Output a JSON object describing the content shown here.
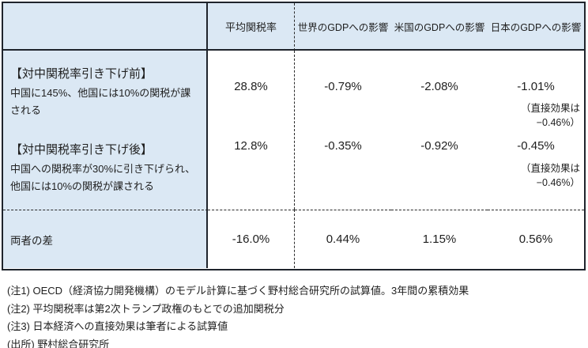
{
  "chart_data": {
    "type": "table",
    "columns": [
      "",
      "平均関税率",
      "世界のGDPへの影響",
      "米国のGDPへの影響",
      "日本のGDPへの影響"
    ],
    "rows": [
      {
        "label_heading": "【対中関税率引き下げ前】",
        "label_desc": [
          "中国に145%、他国には10%の関税が課される"
        ],
        "values": [
          "28.8%",
          "-0.79%",
          "-2.08%",
          "-1.01%"
        ],
        "japan_note": "（直接効果は−0.46%）"
      },
      {
        "label_heading": "【対中関税率引き下げ後】",
        "label_desc": [
          "中国への関税率が30%に引き下げられ、",
          "他国には10%の関税が課される"
        ],
        "values": [
          "12.8%",
          "-0.35%",
          "-0.92%",
          "-0.45%"
        ],
        "japan_note": "（直接効果は−0.46%）"
      },
      {
        "label": "両者の差",
        "values": [
          "-16.0%",
          "0.44%",
          "1.15%",
          "0.56%"
        ]
      }
    ]
  },
  "footnotes": [
    "(注1) OECD（経済協力開発機構）のモデル計算に基づく野村総合研究所の試算値。3年間の累積効果",
    "(注2) 平均関税率は第2次トランプ政権のもとでの追加関税分",
    "(注3) 日本経済への直接効果は筆者による試算値",
    "(出所) 野村総合研究所"
  ],
  "colors": {
    "header_fill": "#dbe8f4",
    "border": "#1f242c"
  }
}
